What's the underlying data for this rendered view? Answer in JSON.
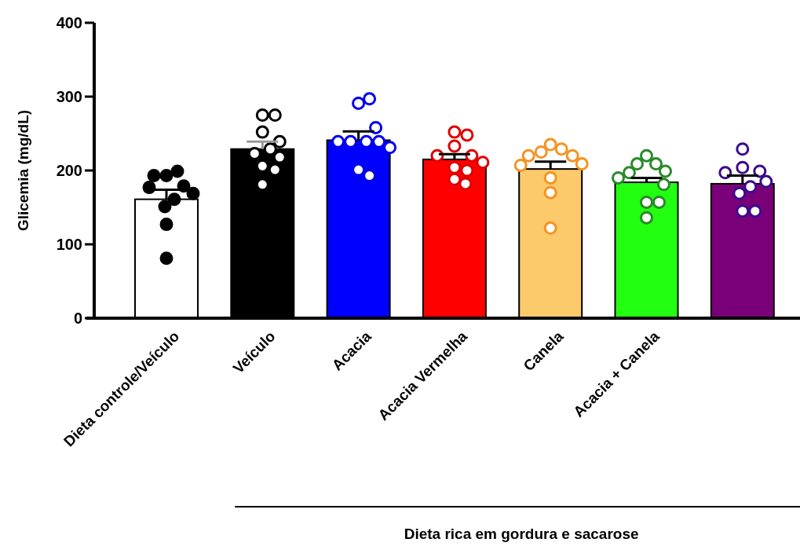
{
  "chart_data": {
    "type": "bar",
    "ylabel": "Glicemia (mg/dL)",
    "categories": [
      "Dieta controle/Veículo",
      "Veículo",
      "Acacia",
      "Acacia Vermelha",
      "Canela",
      "Acacia + Canela",
      null
    ],
    "ylim": [
      0,
      400
    ],
    "yticks": [
      0,
      100,
      200,
      300,
      400
    ],
    "marker": "circle",
    "annotations": [
      "Dieta rica em gordura e sacarose"
    ],
    "series": [
      {
        "colors": [
          "#ffffff",
          "#000000",
          "#0000ff",
          "#ff0000",
          "#fcc96b",
          "#22ff11",
          "#7a007a"
        ],
        "values": [
          161,
          229,
          241,
          215,
          202,
          184,
          182
        ],
        "errors": [
          [
            161,
            174
          ],
          [
            229,
            239
          ],
          [
            241,
            253
          ],
          [
            215,
            222
          ],
          [
            202,
            212
          ],
          [
            184,
            190
          ],
          [
            182,
            193
          ]
        ]
      },
      {
        "type": "scatter",
        "colors": [
          "#000000",
          "#000000",
          "#0000ee",
          "#e00000",
          "#f39423",
          "#2a8a2a",
          "#3b0a8c"
        ],
        "values": [
          193,
          275,
          291,
          252,
          235,
          220,
          229
        ]
      },
      {
        "type": "scatter",
        "colors": [
          "#000000",
          "#000000",
          "#0000ee",
          "#e00000",
          "#f39423",
          "#2a8a2a",
          "#3b0a8c"
        ],
        "values": [
          199,
          275,
          297,
          248,
          229,
          209,
          204
        ]
      },
      {
        "type": "scatter",
        "colors": [
          "#000000",
          "#000000",
          "#0000ee",
          "#e00000",
          "#f39423",
          "#2a8a2a",
          "#3b0a8c"
        ],
        "values": [
          193,
          252,
          258,
          233,
          225,
          209,
          199
        ]
      },
      {
        "type": "scatter",
        "colors": [
          "#000000",
          "#000000",
          "#0000ee",
          "#e00000",
          "#f39423",
          "#2a8a2a",
          "#3b0a8c"
        ],
        "values": [
          179,
          239,
          239,
          220,
          220,
          199,
          197
        ]
      },
      {
        "type": "scatter",
        "colors": [
          "#000000",
          "#000000",
          "#0000ee",
          "#e00000",
          "#f39423",
          "#2a8a2a",
          "#3b0a8c"
        ],
        "values": [
          177,
          229,
          239,
          220,
          220,
          197,
          185
        ]
      },
      {
        "type": "scatter",
        "colors": [
          "#000000",
          "#000000",
          "#0000ee",
          "#e00000",
          "#f39423",
          "#2a8a2a",
          "#3b0a8c"
        ],
        "values": [
          169,
          223,
          239,
          211,
          209,
          190,
          178
        ]
      },
      {
        "type": "scatter",
        "colors": [
          "#000000",
          "#000000",
          "#0000ee",
          "#e00000",
          "#f39423",
          "#2a8a2a",
          "#3b0a8c"
        ],
        "values": [
          161,
          218,
          239,
          204,
          207,
          181,
          169
        ]
      },
      {
        "type": "scatter",
        "colors": [
          "#000000",
          "#000000",
          "#0000ee",
          "#e00000",
          "#f39423",
          "#2a8a2a",
          "#3b0a8c"
        ],
        "values": [
          151,
          206,
          231,
          200,
          190,
          157,
          145
        ]
      },
      {
        "type": "scatter",
        "colors": [
          "#000000",
          "#000000",
          "#0000ee",
          "#e00000",
          "#f39423",
          "#2a8a2a",
          "#3b0a8c"
        ],
        "values": [
          127,
          201,
          201,
          188,
          170,
          157,
          145
        ]
      },
      {
        "type": "scatter",
        "colors": [
          "#000000",
          "#000000",
          "#0000ee",
          "#e00000",
          "#f39423",
          "#2a8a2a",
          null
        ],
        "values": [
          81,
          181,
          193,
          182,
          122,
          136,
          null
        ]
      }
    ]
  }
}
